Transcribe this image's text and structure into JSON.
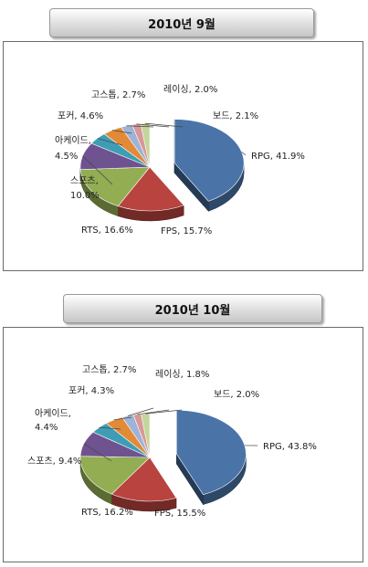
{
  "charts": [
    {
      "title": "2010년 9월"
    },
    {
      "title": "2010년 10월"
    }
  ],
  "chart_data": [
    {
      "type": "pie",
      "title": "2010년 9월",
      "categories": [
        "RPG",
        "FPS",
        "RTS",
        "스포츠",
        "아케이드",
        "포커",
        "고스톱",
        "레이싱",
        "보드"
      ],
      "values": [
        41.9,
        15.7,
        16.6,
        10.0,
        4.5,
        4.6,
        2.7,
        2.0,
        2.1
      ],
      "labels": [
        "RPG, 41.9%",
        "FPS, 15.7%",
        "RTS, 16.6%",
        "스포츠,",
        "10.0%",
        "아케이드,",
        "4.5%",
        "포커, 4.6%",
        "고스톱, 2.7%",
        "레이싱, 2.0%",
        "보드, 2.1%"
      ],
      "colors": [
        "#4a74a8",
        "#b8433f",
        "#92ad52",
        "#6f5391",
        "#3e9db4",
        "#e28a36",
        "#9fb3d8",
        "#d99796",
        "#c3d69b"
      ]
    },
    {
      "type": "pie",
      "title": "2010년 10월",
      "categories": [
        "RPG",
        "FPS",
        "RTS",
        "스포츠",
        "아케이드",
        "포커",
        "고스톱",
        "레이싱",
        "보드"
      ],
      "values": [
        43.8,
        15.5,
        16.2,
        9.4,
        4.4,
        4.3,
        2.7,
        1.8,
        2.0
      ],
      "labels": [
        "RPG, 43.8%",
        "FPS, 15.5%",
        "RTS, 16.2%",
        "스포츠, 9.4%",
        "아케이드,",
        "4.4%",
        "포커, 4.3%",
        "고스톱, 2.7%",
        "레이싱, 1.8%",
        "보드, 2.0%"
      ],
      "colors": [
        "#4a74a8",
        "#b8433f",
        "#92ad52",
        "#6f5391",
        "#3e9db4",
        "#e28a36",
        "#9fb3d8",
        "#d99796",
        "#c3d69b"
      ]
    }
  ]
}
